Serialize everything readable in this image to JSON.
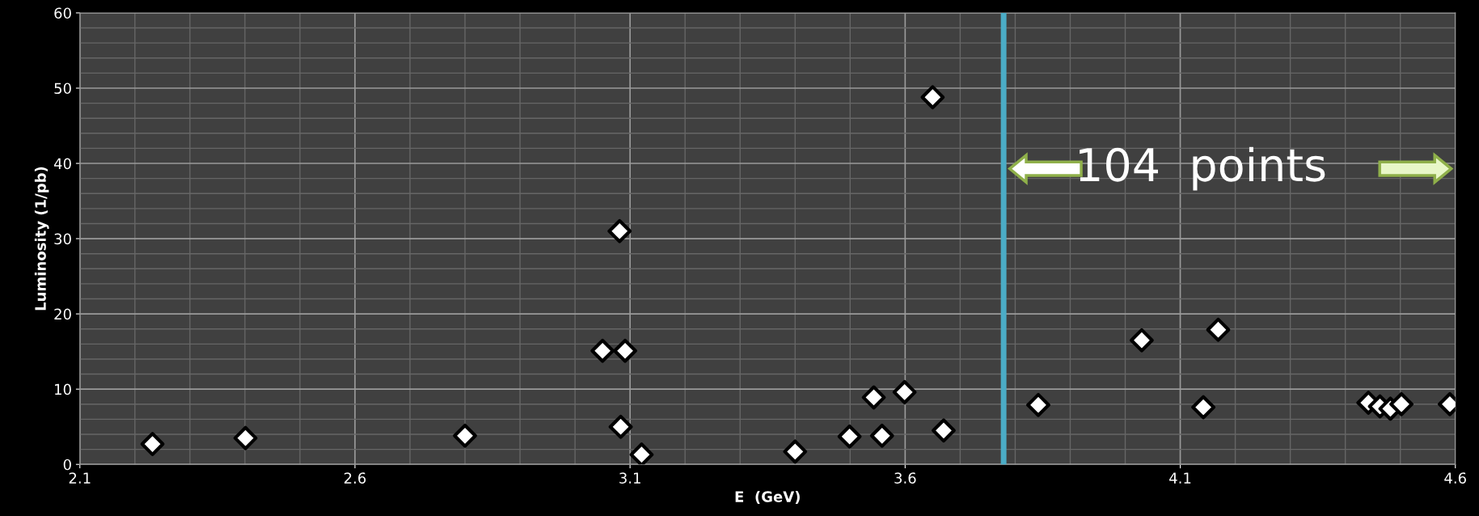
{
  "chart_data": {
    "type": "scatter",
    "xlabel": "E  (GeV)",
    "ylabel": "Luminosity (1/pb)",
    "x": [
      2.232,
      2.401,
      2.8,
      3.081,
      3.05,
      3.091,
      3.083,
      3.121,
      3.4,
      3.499,
      3.543,
      3.558,
      3.599,
      3.65,
      3.67,
      3.842,
      4.03,
      4.142,
      4.169,
      4.442,
      4.463,
      4.482,
      4.502,
      4.59
    ],
    "values": [
      2.7,
      3.5,
      3.8,
      31.0,
      15.1,
      15.1,
      5.0,
      1.3,
      1.7,
      3.7,
      8.9,
      3.8,
      9.6,
      48.8,
      4.5,
      7.9,
      16.5,
      7.6,
      17.9,
      8.2,
      7.7,
      7.4,
      8.0,
      8.0
    ],
    "color": "#ffffff",
    "marker": "diamond",
    "xlim": [
      2.1,
      4.6
    ],
    "xticks": [
      2.1,
      2.6,
      3.1,
      3.6,
      4.1,
      4.6
    ],
    "ylim": [
      0,
      60
    ],
    "yticks": [
      0,
      10,
      20,
      30,
      40,
      50,
      60
    ],
    "grid": true,
    "ref_lines": [
      {
        "axis": "x",
        "value": 3.779,
        "color": "#4bacc6"
      }
    ],
    "annotations": [
      "104  points"
    ]
  }
}
